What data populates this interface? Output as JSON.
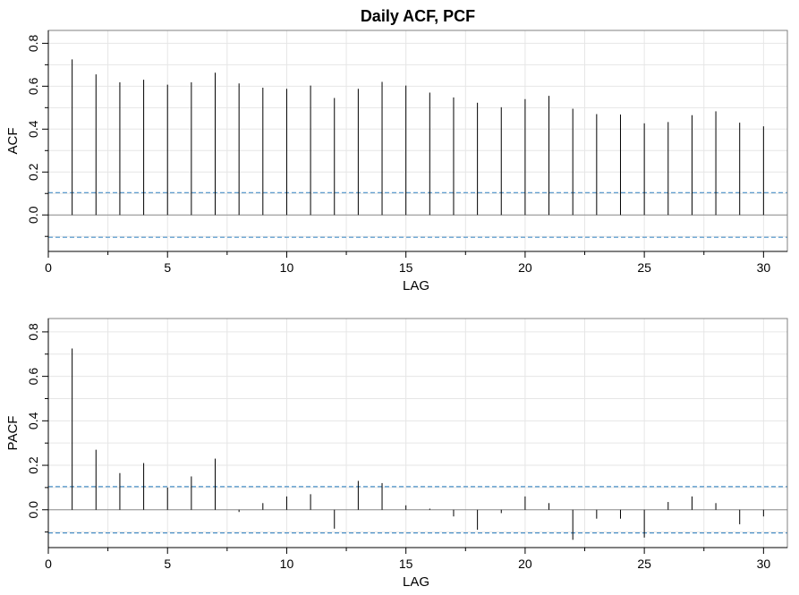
{
  "title": "Daily ACF, PCF",
  "chart_data": [
    {
      "type": "bar",
      "name": "acf",
      "xlabel": "LAG",
      "ylabel": "ACF",
      "xlim": [
        0,
        31
      ],
      "ylim": [
        -0.17,
        0.86
      ],
      "xticks": [
        0,
        5,
        10,
        15,
        20,
        25,
        30
      ],
      "yticks": [
        0.0,
        0.2,
        0.4,
        0.6,
        0.8
      ],
      "ytick_labels": [
        "0.0",
        "0.2",
        "0.4",
        "0.6",
        "0.8"
      ],
      "grid": true,
      "confidence_bound": 0.104,
      "lags": [
        1,
        2,
        3,
        4,
        5,
        6,
        7,
        8,
        9,
        10,
        11,
        12,
        13,
        14,
        15,
        16,
        17,
        18,
        19,
        20,
        21,
        22,
        23,
        24,
        25,
        26,
        27,
        28,
        29,
        30
      ],
      "values": [
        0.725,
        0.655,
        0.618,
        0.63,
        0.607,
        0.618,
        0.663,
        0.613,
        0.593,
        0.588,
        0.603,
        0.545,
        0.588,
        0.62,
        0.603,
        0.57,
        0.548,
        0.523,
        0.502,
        0.54,
        0.555,
        0.495,
        0.47,
        0.468,
        0.427,
        0.433,
        0.465,
        0.483,
        0.43,
        0.413
      ]
    },
    {
      "type": "bar",
      "name": "pacf",
      "xlabel": "LAG",
      "ylabel": "PACF",
      "xlim": [
        0,
        31
      ],
      "ylim": [
        -0.17,
        0.86
      ],
      "xticks": [
        0,
        5,
        10,
        15,
        20,
        25,
        30
      ],
      "yticks": [
        0.0,
        0.2,
        0.4,
        0.6,
        0.8
      ],
      "ytick_labels": [
        "0.0",
        "0.2",
        "0.4",
        "0.6",
        "0.8"
      ],
      "grid": true,
      "confidence_bound": 0.104,
      "lags": [
        1,
        2,
        3,
        4,
        5,
        6,
        7,
        8,
        9,
        10,
        11,
        12,
        13,
        14,
        15,
        16,
        17,
        18,
        19,
        20,
        21,
        22,
        23,
        24,
        25,
        26,
        27,
        28,
        29,
        30
      ],
      "values": [
        0.725,
        0.27,
        0.165,
        0.21,
        0.1,
        0.15,
        0.23,
        -0.01,
        0.03,
        0.06,
        0.07,
        -0.085,
        0.13,
        0.12,
        0.02,
        0.005,
        -0.03,
        -0.09,
        -0.015,
        0.06,
        0.03,
        -0.135,
        -0.04,
        -0.04,
        -0.125,
        0.035,
        0.06,
        0.03,
        -0.065,
        -0.03
      ]
    }
  ]
}
